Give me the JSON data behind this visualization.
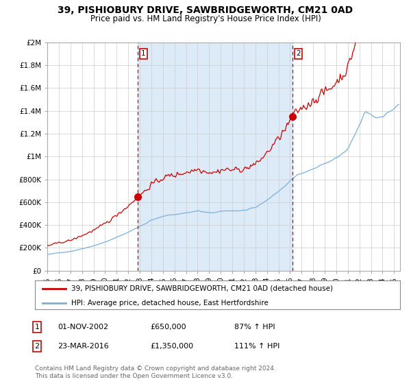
{
  "title": "39, PISHIOBURY DRIVE, SAWBRIDGEWORTH, CM21 0AD",
  "subtitle": "Price paid vs. HM Land Registry's House Price Index (HPI)",
  "legend_house": "39, PISHIOBURY DRIVE, SAWBRIDGEWORTH, CM21 0AD (detached house)",
  "legend_hpi": "HPI: Average price, detached house, East Hertfordshire",
  "footnote1": "Contains HM Land Registry data © Crown copyright and database right 2024.",
  "footnote2": "This data is licensed under the Open Government Licence v3.0.",
  "sale1_date": "01-NOV-2002",
  "sale1_price": "£650,000",
  "sale1_hpi": "87% ↑ HPI",
  "sale2_date": "23-MAR-2016",
  "sale2_price": "£1,350,000",
  "sale2_hpi": "111% ↑ HPI",
  "sale1_year": 2002.83,
  "sale1_value": 650000,
  "sale2_year": 2016.22,
  "sale2_value": 1350000,
  "hpi_color": "#7ab0dc",
  "house_color": "#cc0000",
  "dot_color": "#cc0000",
  "vline_color": "#cc0000",
  "shade_color": "#ddeaf7",
  "background_color": "#ffffff",
  "grid_color": "#cccccc",
  "ylim": [
    0,
    2000000
  ],
  "xlim_start": 1995.0,
  "xlim_end": 2025.5
}
